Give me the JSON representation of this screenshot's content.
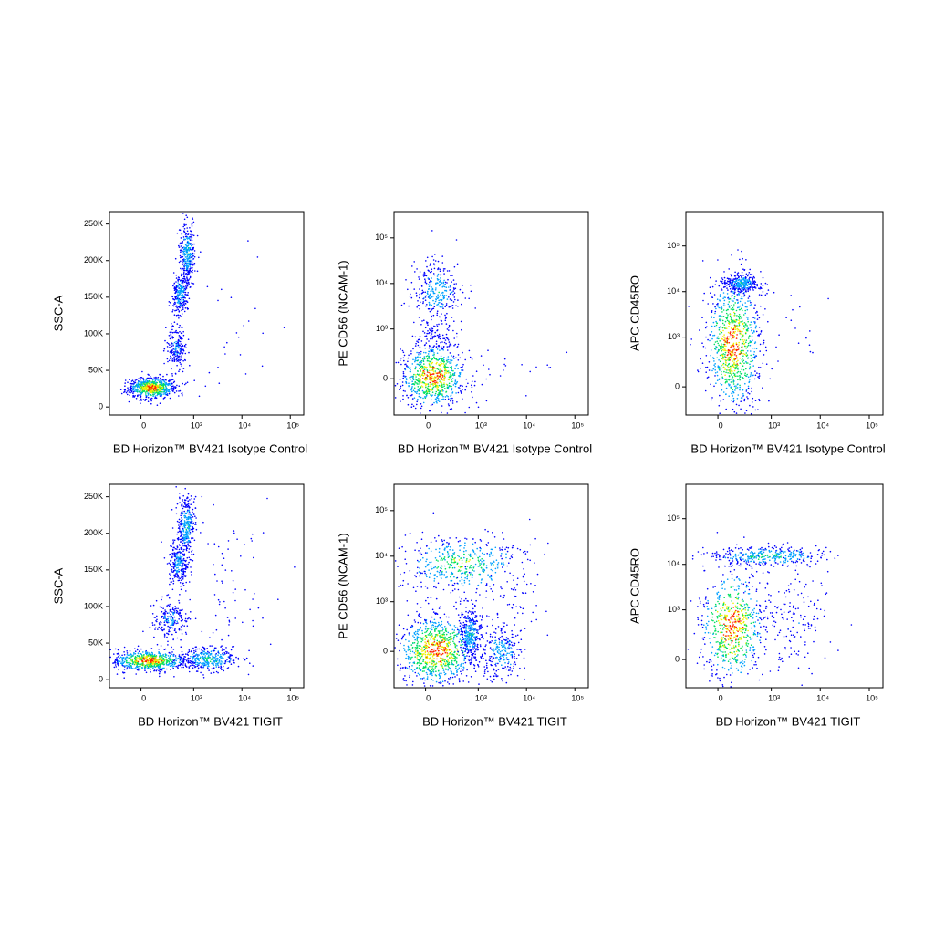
{
  "chart_data": [
    {
      "type": "scatter",
      "xlabel": "BD Horizon™ BV421 Isotype Control",
      "ylabel": "SSC-A",
      "xscale": "biexponential",
      "yscale": "linear",
      "xlim": [
        -350,
        190000
      ],
      "ylim": [
        -11000,
        267000
      ],
      "xticks": [
        0,
        {
          "value": 1000,
          "label": "10³"
        },
        {
          "value": 10000,
          "label": "10⁴"
        },
        {
          "value": 100000,
          "label": "10⁵"
        }
      ],
      "yticks": [
        0,
        {
          "value": 50000,
          "label": "50K"
        },
        {
          "value": 100000,
          "label": "100K"
        },
        {
          "value": 150000,
          "label": "150K"
        },
        {
          "value": 200000,
          "label": "200K"
        },
        {
          "value": 250000,
          "label": "250K"
        }
      ],
      "colormap": [
        "#0000ff",
        "#00a0ff",
        "#00e060",
        "#f0f000",
        "#ff2000"
      ],
      "populations": [
        {
          "x": [
            -100,
            400
          ],
          "y": [
            12000,
            40000
          ],
          "count": 700
        },
        {
          "x": [
            250,
            700
          ],
          "y": [
            50000,
            110000
          ],
          "count": 200
        },
        {
          "x": [
            350,
            800
          ],
          "y": [
            120000,
            190000
          ],
          "count": 250
        },
        {
          "x": [
            500,
            1100
          ],
          "y": [
            170000,
            250000
          ],
          "count": 300
        },
        {
          "x": [
            500,
            60000
          ],
          "y": [
            10000,
            200000
          ],
          "count": 25
        }
      ]
    },
    {
      "type": "scatter",
      "xlabel": "BD Horizon™ BV421 Isotype Control",
      "ylabel": "PE CD56 (NCAM-1)",
      "xscale": "biexponential",
      "yscale": "biexponential",
      "xlim": [
        -350,
        190000
      ],
      "ylim": [
        -500,
        377000
      ],
      "xticks": [
        0,
        {
          "value": 1000,
          "label": "10³"
        },
        {
          "value": 10000,
          "label": "10⁴"
        },
        {
          "value": 100000,
          "label": "10⁵"
        }
      ],
      "yticks": [
        0,
        {
          "value": 1000,
          "label": "10³"
        },
        {
          "value": 10000,
          "label": "10⁴"
        },
        {
          "value": 100000,
          "label": "10⁵"
        }
      ],
      "colormap": [
        "#0000ff",
        "#00a0ff",
        "#00e060",
        "#f0f000",
        "#ff2000"
      ],
      "populations": [
        {
          "x": [
            -250,
            550
          ],
          "y": [
            -350,
            450
          ],
          "count": 800
        },
        {
          "x": [
            -100,
            450
          ],
          "y": [
            1500,
            30000
          ],
          "count": 300
        },
        {
          "x": [
            -50,
            350
          ],
          "y": [
            300,
            2000
          ],
          "count": 80
        },
        {
          "x": [
            500,
            60000
          ],
          "y": [
            -100,
            400
          ],
          "count": 20
        }
      ]
    },
    {
      "type": "scatter",
      "xlabel": "BD Horizon™ BV421 Isotype Control",
      "ylabel": "APC CD45RO",
      "xscale": "biexponential",
      "yscale": "biexponential",
      "xlim": [
        -350,
        190000
      ],
      "ylim": [
        -320,
        567000
      ],
      "xticks": [
        0,
        {
          "value": 1000,
          "label": "10³"
        },
        {
          "value": 10000,
          "label": "10⁴"
        },
        {
          "value": 100000,
          "label": "10⁵"
        }
      ],
      "yticks": [
        0,
        {
          "value": 1000,
          "label": "10³"
        },
        {
          "value": 10000,
          "label": "10⁴"
        },
        {
          "value": 100000,
          "label": "10⁵"
        }
      ],
      "colormap": [
        "#0000ff",
        "#00a0ff",
        "#00e060",
        "#f0f000",
        "#ff2000"
      ],
      "populations": [
        {
          "x": [
            -100,
            600
          ],
          "y": [
            -250,
            20000
          ],
          "count": 900
        },
        {
          "x": [
            50,
            550
          ],
          "y": [
            9000,
            25000
          ],
          "count": 300
        },
        {
          "x": [
            600,
            20000
          ],
          "y": [
            100,
            20000
          ],
          "count": 15
        }
      ]
    },
    {
      "type": "scatter",
      "xlabel": "BD Horizon™ BV421 TIGIT",
      "ylabel": "SSC-A",
      "xscale": "biexponential",
      "yscale": "linear",
      "xlim": [
        -350,
        190000
      ],
      "ylim": [
        -11000,
        267000
      ],
      "xticks": [
        0,
        {
          "value": 1000,
          "label": "10³"
        },
        {
          "value": 10000,
          "label": "10⁴"
        },
        {
          "value": 100000,
          "label": "10⁵"
        }
      ],
      "yticks": [
        0,
        {
          "value": 50000,
          "label": "50K"
        },
        {
          "value": 100000,
          "label": "100K"
        },
        {
          "value": 150000,
          "label": "150K"
        },
        {
          "value": 200000,
          "label": "200K"
        },
        {
          "value": 250000,
          "label": "250K"
        }
      ],
      "colormap": [
        "#0000ff",
        "#00a0ff",
        "#00e060",
        "#f0f000",
        "#ff2000"
      ],
      "populations": [
        {
          "x": [
            -300,
            700
          ],
          "y": [
            12000,
            40000
          ],
          "count": 700
        },
        {
          "x": [
            500,
            9000
          ],
          "y": [
            12000,
            45000
          ],
          "count": 350
        },
        {
          "x": [
            100,
            800
          ],
          "y": [
            55000,
            110000
          ],
          "count": 200
        },
        {
          "x": [
            300,
            800
          ],
          "y": [
            130000,
            190000
          ],
          "count": 250
        },
        {
          "x": [
            450,
            1100
          ],
          "y": [
            170000,
            250000
          ],
          "count": 300
        },
        {
          "x": [
            500,
            60000
          ],
          "y": [
            10000,
            250000
          ],
          "count": 70
        }
      ]
    },
    {
      "type": "scatter",
      "xlabel": "BD Horizon™ BV421 TIGIT",
      "ylabel": "PE CD56 (NCAM-1)",
      "xscale": "biexponential",
      "yscale": "biexponential",
      "xlim": [
        -350,
        190000
      ],
      "ylim": [
        -500,
        377000
      ],
      "xticks": [
        0,
        {
          "value": 1000,
          "label": "10³"
        },
        {
          "value": 10000,
          "label": "10⁴"
        },
        {
          "value": 100000,
          "label": "10⁵"
        }
      ],
      "yticks": [
        0,
        {
          "value": 1000,
          "label": "10³"
        },
        {
          "value": 10000,
          "label": "10⁴"
        },
        {
          "value": 100000,
          "label": "10⁵"
        }
      ],
      "colormap": [
        "#0000ff",
        "#00a0ff",
        "#00e060",
        "#f0f000",
        "#ff2000"
      ],
      "populations": [
        {
          "x": [
            -300,
            900
          ],
          "y": [
            -450,
            500
          ],
          "count": 900
        },
        {
          "x": [
            400,
            1200
          ],
          "y": [
            -100,
            800
          ],
          "count": 300
        },
        {
          "x": [
            1000,
            9000
          ],
          "y": [
            -350,
            300
          ],
          "count": 250
        },
        {
          "x": [
            -200,
            8000
          ],
          "y": [
            1500,
            30000
          ],
          "count": 450
        },
        {
          "x": [
            500,
            60000
          ],
          "y": [
            -300,
            30000
          ],
          "count": 80
        }
      ]
    },
    {
      "type": "scatter",
      "xlabel": "BD Horizon™ BV421 TIGIT",
      "ylabel": "APC CD45RO",
      "xscale": "biexponential",
      "yscale": "biexponential",
      "xlim": [
        -350,
        190000
      ],
      "ylim": [
        -320,
        567000
      ],
      "xticks": [
        0,
        {
          "value": 1000,
          "label": "10³"
        },
        {
          "value": 10000,
          "label": "10⁴"
        },
        {
          "value": 100000,
          "label": "10⁵"
        }
      ],
      "yticks": [
        0,
        {
          "value": 1000,
          "label": "10³"
        },
        {
          "value": 10000,
          "label": "10⁴"
        },
        {
          "value": 100000,
          "label": "10⁵"
        }
      ],
      "colormap": [
        "#0000ff",
        "#00a0ff",
        "#00e060",
        "#f0f000",
        "#ff2000"
      ],
      "populations": [
        {
          "x": [
            -150,
            700
          ],
          "y": [
            -250,
            8000
          ],
          "count": 700
        },
        {
          "x": [
            -100,
            15000
          ],
          "y": [
            9000,
            25000
          ],
          "count": 350
        },
        {
          "x": [
            600,
            15000
          ],
          "y": [
            -200,
            8000
          ],
          "count": 150
        }
      ]
    }
  ]
}
